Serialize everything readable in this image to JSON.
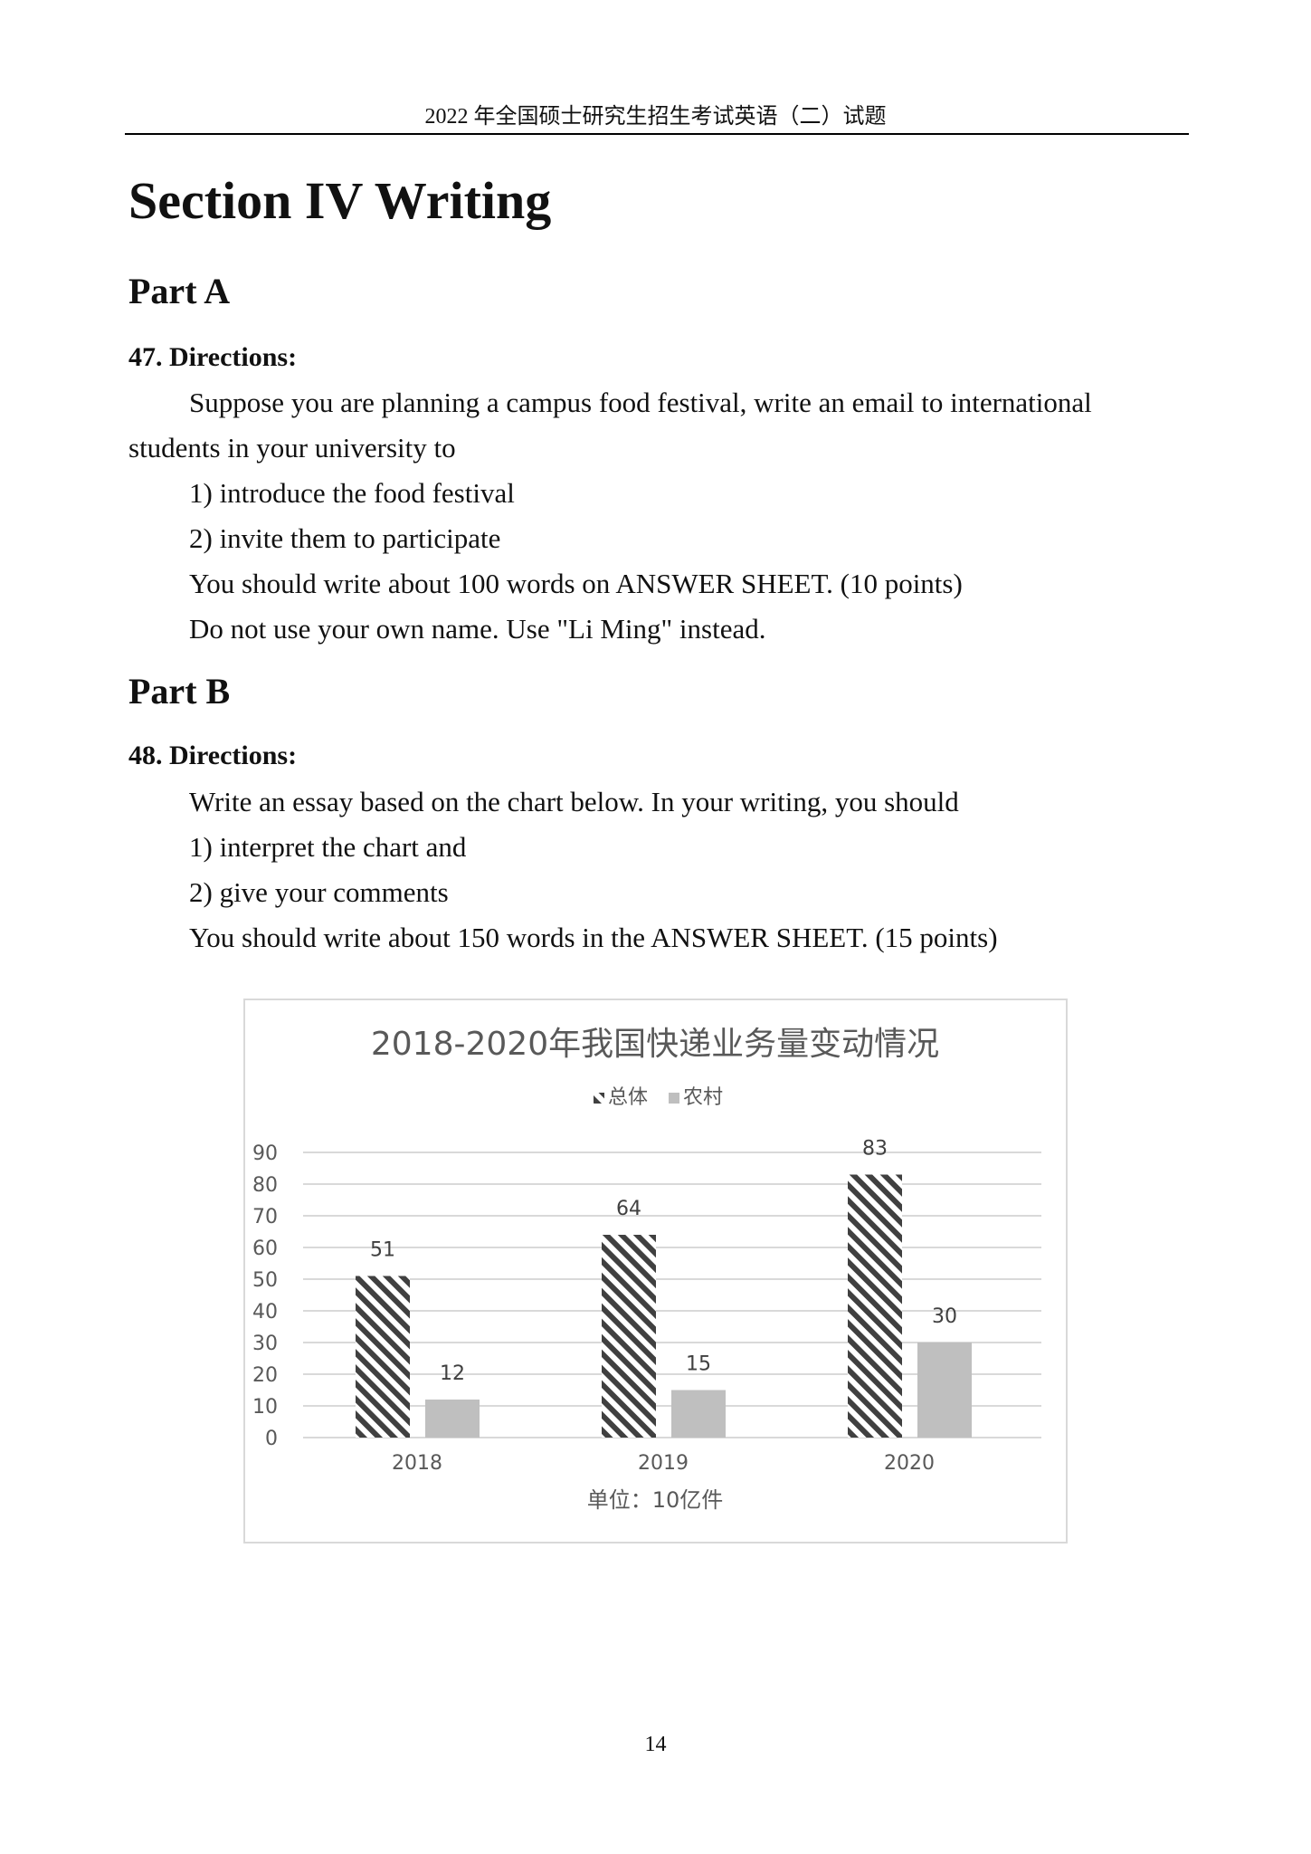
{
  "header": {
    "title": "2022 年全国硕士研究生招生考试英语（二）试题"
  },
  "section_title": "Section IV   Writing",
  "part_a": {
    "title": "Part A",
    "number": "47.  Directions:",
    "lines": [
      "Suppose you are planning a campus food festival, write an email to international",
      "students in your university to",
      "1) introduce the food festival",
      "2) invite them to participate",
      "You should write about 100 words on ANSWER SHEET. (10 points)",
      "Do not use your own name. Use \"Li Ming\" instead."
    ]
  },
  "part_b": {
    "title": "Part B",
    "number": "48.  Directions:",
    "lines": [
      "Write an essay based on the chart below. In your writing, you should",
      "1) interpret the chart and",
      "2) give your comments",
      "You should write about 150 words in the ANSWER SHEET. (15 points)"
    ]
  },
  "chart_data": {
    "type": "bar",
    "title": "2018-2020年我国快递业务量变动情况",
    "categories": [
      "2018",
      "2019",
      "2020"
    ],
    "series": [
      {
        "name": "总体",
        "values": [
          51,
          64,
          83
        ],
        "pattern": "diagonal-stripes",
        "color": "#404040"
      },
      {
        "name": "农村",
        "values": [
          12,
          15,
          30
        ],
        "color": "#bfbfbf"
      }
    ],
    "xlabel": "单位：10亿件",
    "ylabel": "",
    "ylim": [
      0,
      90
    ],
    "yticks": [
      0,
      10,
      20,
      30,
      40,
      50,
      60,
      70,
      80,
      90
    ],
    "grid": true,
    "legend": "top"
  },
  "page_number": "14"
}
